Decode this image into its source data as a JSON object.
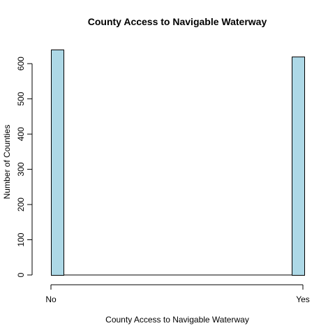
{
  "chart_data": {
    "type": "bar",
    "title": "County Access to Navigable Waterway",
    "xlabel": "County Access to Navigable Waterway",
    "ylabel": "Number of Counties",
    "categories": [
      "No",
      "Yes"
    ],
    "values": [
      640,
      620
    ],
    "ylim": [
      0,
      640
    ],
    "yticks": [
      0,
      100,
      200,
      300,
      400,
      500,
      600
    ],
    "grid": false,
    "legend": "none",
    "bar_color": "#ADD8E6",
    "edge_color": "#000000"
  }
}
